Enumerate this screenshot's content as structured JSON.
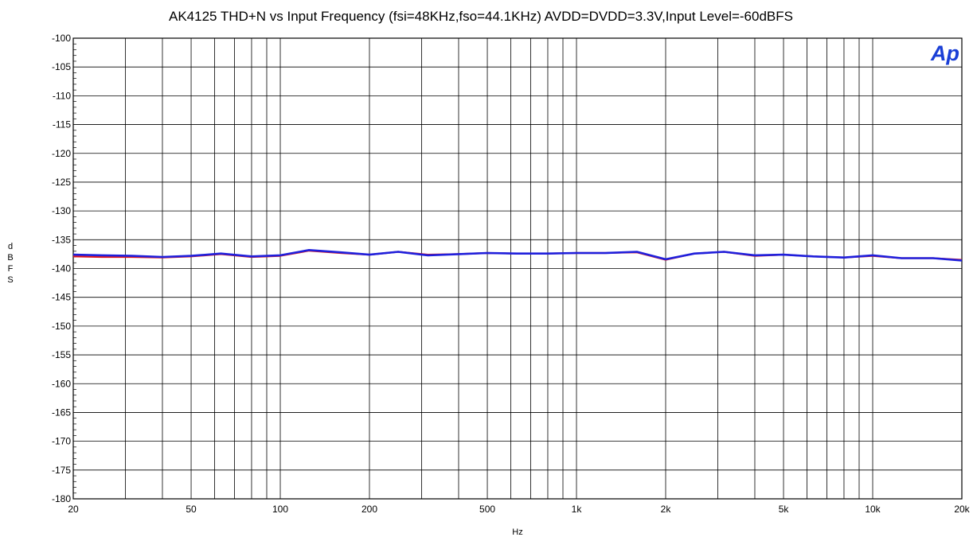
{
  "chart_data": {
    "type": "line",
    "title": "AK4125 THD+N vs Input Frequency (fsi=48KHz,fso=44.1KHz) AVDD=DVDD=3.3V,Input Level=-60dBFS",
    "xlabel": "Hz",
    "ylabel": "dBFS",
    "xscale": "log",
    "xlim": [
      20,
      20000
    ],
    "ylim": [
      -180,
      -100
    ],
    "grid": true,
    "logo": "Ap",
    "x_ticks": [
      20,
      50,
      100,
      200,
      500,
      1000,
      2000,
      5000,
      10000,
      20000
    ],
    "x_tick_labels": [
      "20",
      "50",
      "100",
      "200",
      "500",
      "1k",
      "2k",
      "5k",
      "10k",
      "20k"
    ],
    "y_ticks": [
      -100,
      -105,
      -110,
      -115,
      -120,
      -125,
      -130,
      -135,
      -140,
      -145,
      -150,
      -155,
      -160,
      -165,
      -170,
      -175,
      -180
    ],
    "y_tick_labels": [
      "-100",
      "-105",
      "-110",
      "-115",
      "-120",
      "-125",
      "-130",
      "-135",
      "-140",
      "-145",
      "-150",
      "-155",
      "-160",
      "-165",
      "-170",
      "-175",
      "-180"
    ],
    "x_grid": [
      20,
      30,
      40,
      50,
      60,
      70,
      80,
      90,
      100,
      200,
      300,
      400,
      500,
      600,
      700,
      800,
      900,
      1000,
      2000,
      3000,
      4000,
      5000,
      6000,
      7000,
      8000,
      9000,
      10000,
      20000
    ],
    "series": [
      {
        "color": "#e0161e",
        "x": [
          20,
          25,
          31.5,
          40,
          50,
          63,
          80,
          100,
          125,
          160,
          200,
          250,
          315,
          400,
          500,
          630,
          800,
          1000,
          1250,
          1600,
          2000,
          2500,
          3150,
          4000,
          5000,
          6300,
          8000,
          10000,
          12500,
          16000,
          20000
        ],
        "y": [
          -137.9,
          -138.0,
          -138.0,
          -138.1,
          -137.9,
          -137.5,
          -138.0,
          -137.8,
          -136.9,
          -137.3,
          -137.6,
          -137.1,
          -137.6,
          -137.5,
          -137.3,
          -137.4,
          -137.4,
          -137.3,
          -137.3,
          -137.2,
          -138.5,
          -137.4,
          -137.1,
          -137.8,
          -137.6,
          -137.9,
          -138.1,
          -137.8,
          -138.2,
          -138.2,
          -138.5
        ]
      },
      {
        "color": "#1f1fdc",
        "x": [
          20,
          25,
          31.5,
          40,
          50,
          63,
          80,
          100,
          125,
          160,
          200,
          250,
          315,
          400,
          500,
          630,
          800,
          1000,
          1250,
          1600,
          2000,
          2500,
          3150,
          4000,
          5000,
          6300,
          8000,
          10000,
          12500,
          16000,
          20000
        ],
        "y": [
          -137.6,
          -137.7,
          -137.8,
          -138.0,
          -137.8,
          -137.4,
          -137.9,
          -137.7,
          -136.8,
          -137.2,
          -137.6,
          -137.1,
          -137.7,
          -137.5,
          -137.3,
          -137.4,
          -137.4,
          -137.3,
          -137.3,
          -137.1,
          -138.4,
          -137.4,
          -137.1,
          -137.7,
          -137.6,
          -137.9,
          -138.1,
          -137.7,
          -138.2,
          -138.2,
          -138.6
        ]
      }
    ]
  }
}
